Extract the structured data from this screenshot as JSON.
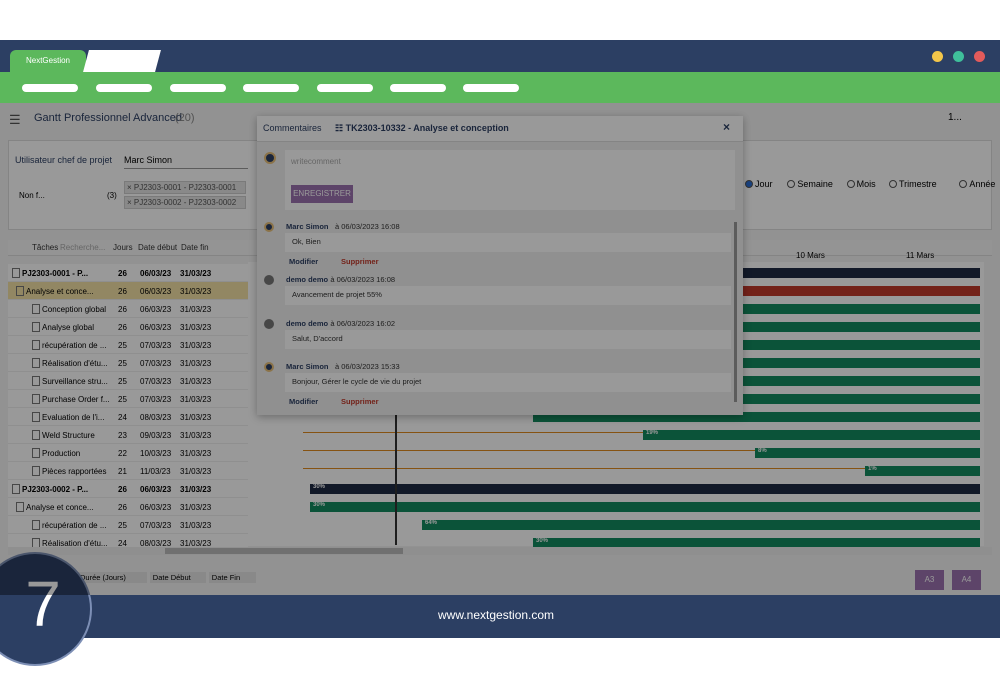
{
  "app": {
    "tab": "NextGestion"
  },
  "page": {
    "title": "Gantt Professionnel Advanced",
    "count": "(20)",
    "pager": "1...",
    "filter_label": "Utilisateur chef de projet",
    "filter_value": "Marc Simon",
    "non_filter": "Non f...",
    "group_count": "(3)",
    "tags": [
      "× PJ2303-0001 - PJ2303-0001",
      "× PJ2303-0002 - PJ2303-0002"
    ],
    "views": [
      "Jour",
      "Semaine",
      "Mois",
      "Trimestre",
      "Année"
    ],
    "table": {
      "headers": [
        "Tâches",
        "Recherche...",
        "Jours",
        "Date début",
        "Date fin"
      ],
      "rows": [
        [
          "PJ2303-0001 - P...",
          "26",
          "06/03/23",
          "31/03/23"
        ],
        [
          "Analyse et conce...",
          "26",
          "06/03/23",
          "31/03/23"
        ],
        [
          "Conception global",
          "26",
          "06/03/23",
          "31/03/23"
        ],
        [
          "Analyse global",
          "26",
          "06/03/23",
          "31/03/23"
        ],
        [
          "récupération de ...",
          "25",
          "07/03/23",
          "31/03/23"
        ],
        [
          "Réalisation d'étu...",
          "25",
          "07/03/23",
          "31/03/23"
        ],
        [
          "Surveillance stru...",
          "25",
          "07/03/23",
          "31/03/23"
        ],
        [
          "Purchase Order f...",
          "25",
          "07/03/23",
          "31/03/23"
        ],
        [
          "Evaluation de l'i...",
          "24",
          "08/03/23",
          "31/03/23"
        ],
        [
          "Weld Structure",
          "23",
          "09/03/23",
          "31/03/23"
        ],
        [
          "Production",
          "22",
          "10/03/23",
          "31/03/23"
        ],
        [
          "Pièces rapportées",
          "21",
          "11/03/23",
          "31/03/23"
        ],
        [
          "PJ2303-0002 - P...",
          "26",
          "06/03/23",
          "31/03/23"
        ],
        [
          "Analyse et conce...",
          "26",
          "06/03/23",
          "31/03/23"
        ],
        [
          "récupération de ...",
          "25",
          "07/03/23",
          "31/03/23"
        ],
        [
          "Réalisation d'étu...",
          "24",
          "08/03/23",
          "31/03/23"
        ]
      ]
    },
    "timeline": {
      "dates": [
        "10 Mars",
        "11 Mars"
      ],
      "labels": [
        "19%",
        "8%",
        "1%",
        "30%",
        "30%",
        "64%",
        "30%"
      ]
    },
    "column_chips": [
      "Durée (Jours)",
      "Date Début",
      "Date Fin"
    ],
    "exports": [
      "A3",
      "A4"
    ]
  },
  "modal": {
    "title": "Commentaires",
    "task": "TK2303-10332 - Analyse et conception",
    "close": "×",
    "placeholder": "writecomment",
    "save": "ENREGISTRER",
    "comments": [
      {
        "author": "Marc Simon",
        "date": "à 06/03/2023 16:08",
        "text": "Ok, Bien",
        "edit": "Modifier",
        "delete": "Supprimer"
      },
      {
        "author": "demo demo",
        "date": "à 06/03/2023 16:08",
        "text": "Avancement de projet 55%"
      },
      {
        "author": "demo demo",
        "date": "à 06/03/2023 16:02",
        "text": "Salut, D'accord"
      },
      {
        "author": "Marc Simon",
        "date": "à 06/03/2023 15:33",
        "text": "Bonjour, Gérer le cycle de vie du projet",
        "edit": "Modifier",
        "delete": "Supprimer"
      }
    ]
  },
  "footer": {
    "url": "www.nextgestion.com",
    "step": "7"
  }
}
